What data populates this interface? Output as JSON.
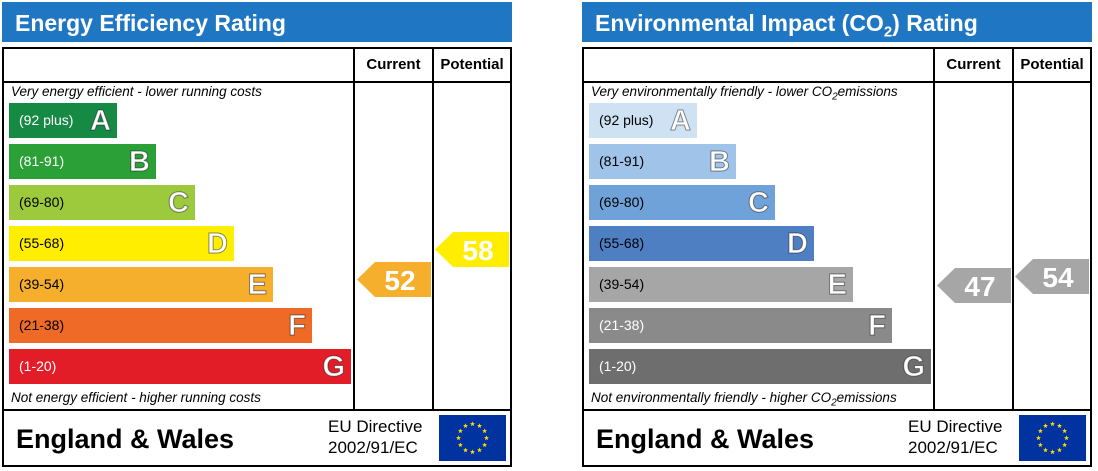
{
  "energy": {
    "title": "Energy Efficiency Rating",
    "col_current": "Current",
    "col_potential": "Potential",
    "top_note": "Very energy efficient - lower running costs",
    "bottom_note": "Not energy efficient - higher running costs",
    "bands": [
      {
        "range": "(92 plus)",
        "letter": "A",
        "color": "#168a45"
      },
      {
        "range": "(81-91)",
        "letter": "B",
        "color": "#2aa037"
      },
      {
        "range": "(69-80)",
        "letter": "C",
        "color": "#9dca3c"
      },
      {
        "range": "(55-68)",
        "letter": "D",
        "color": "#ffee00"
      },
      {
        "range": "(39-54)",
        "letter": "E",
        "color": "#f6ae2d"
      },
      {
        "range": "(21-38)",
        "letter": "F",
        "color": "#ee6a26"
      },
      {
        "range": "(1-20)",
        "letter": "G",
        "color": "#e31d27"
      }
    ],
    "current": {
      "value": "52",
      "color": "#f6ae2d"
    },
    "potential": {
      "value": "58",
      "color": "#ffee00"
    },
    "footer": "England & Wales",
    "directive_line1": "EU Directive",
    "directive_line2": "2002/91/EC"
  },
  "environment": {
    "title_pre": "Environmental Impact (CO",
    "title_sub": "2",
    "title_post": ") Rating",
    "col_current": "Current",
    "col_potential": "Potential",
    "top_note_pre": "Very environmentally friendly - lower CO",
    "top_note_sub": "2",
    "top_note_post": "emissions",
    "bottom_note_pre": "Not environmentally friendly - higher CO",
    "bottom_note_sub": "2",
    "bottom_note_post": "emissions",
    "bands": [
      {
        "range": "(92 plus)",
        "letter": "A",
        "color": "#cfe2f3"
      },
      {
        "range": "(81-91)",
        "letter": "B",
        "color": "#9fc3e9"
      },
      {
        "range": "(69-80)",
        "letter": "C",
        "color": "#6fa2d8"
      },
      {
        "range": "(55-68)",
        "letter": "D",
        "color": "#4f7fc3"
      },
      {
        "range": "(39-54)",
        "letter": "E",
        "color": "#a6a6a6"
      },
      {
        "range": "(21-38)",
        "letter": "F",
        "color": "#8a8a8a"
      },
      {
        "range": "(1-20)",
        "letter": "G",
        "color": "#6e6e6e"
      }
    ],
    "current": {
      "value": "47",
      "color": "#a6a6a6"
    },
    "potential": {
      "value": "54",
      "color": "#a6a6a6"
    },
    "footer": "England & Wales",
    "directive_line1": "EU Directive",
    "directive_line2": "2002/91/EC"
  }
}
